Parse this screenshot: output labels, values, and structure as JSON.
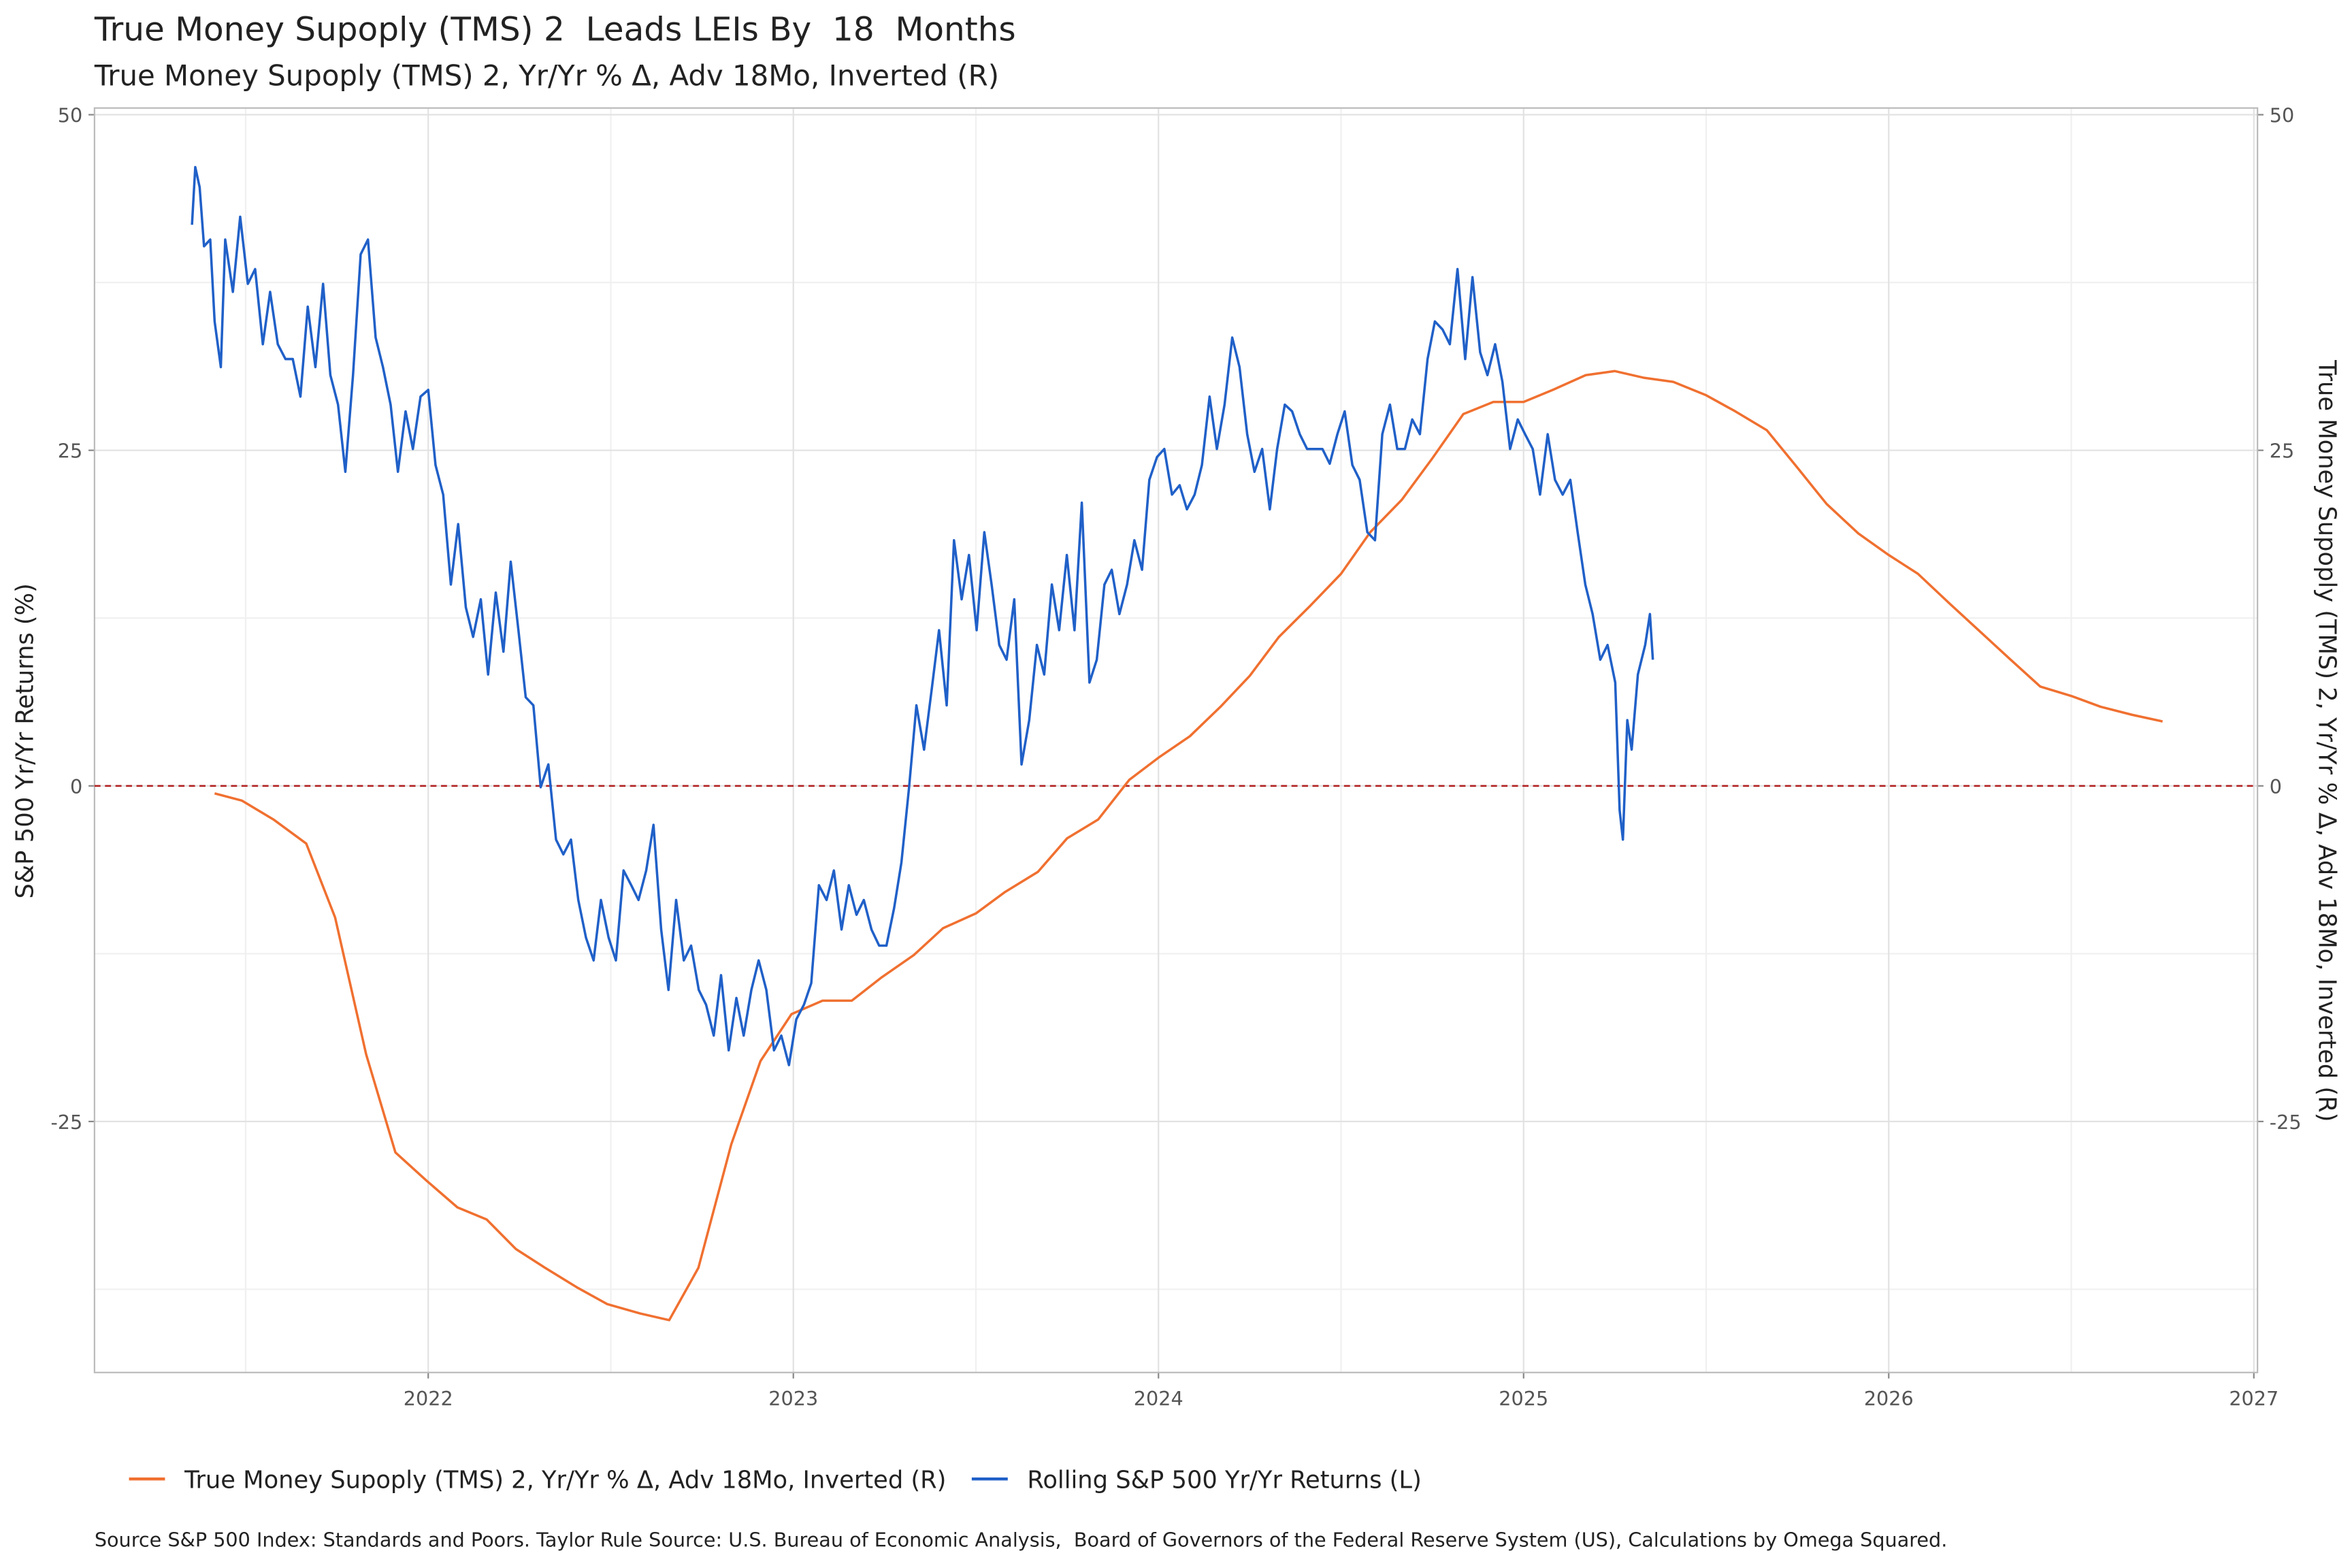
{
  "chart_data": {
    "type": "line",
    "title": "True Money Supoply (TMS) 2  Leads LEIs By  18  Months",
    "subtitle": "True Money Supoply (TMS) 2, Yr/Yr % Δ, Adv 18Mo, Inverted (R)",
    "y_label": "S&P 500 Yr/Yr Returns (%)",
    "y2_label": "True Money Supoply (TMS) 2, Yr/Yr % Δ, Adv 18Mo, Inverted (R)",
    "source": "Source S&P 500 Index: Standards and Poors. Taylor Rule Source: U.S. Bureau of Economic Analysis,  Board of Governors of the Federal Reserve System (US), Calculations by Omega Squared.",
    "xlim": [
      2021.086,
      2027.01
    ],
    "xticks": [
      2022,
      2023,
      2024,
      2025,
      2026,
      2027
    ],
    "ylim": [
      -43.7,
      50.5
    ],
    "yticks": [
      -25,
      0,
      25,
      50
    ],
    "y2lim": [
      -43.7,
      50.5
    ],
    "y2ticks": [
      -25,
      0,
      25,
      50
    ],
    "grid": true,
    "minor_grid": true,
    "reference_line": 0,
    "reference_color": "#b22222",
    "legend": "bottom",
    "series": [
      {
        "name": "True Money Supoply (TMS) 2, Yr/Yr % Δ, Adv 18Mo, Inverted (R)",
        "color": "#f07030",
        "axis": "y2",
        "x": [
          2021.415,
          2021.49,
          2021.576,
          2021.666,
          2021.745,
          2021.83,
          2021.91,
          2021.995,
          2022.08,
          2022.16,
          2022.24,
          2022.32,
          2022.41,
          2022.49,
          2022.58,
          2022.66,
          2022.74,
          2022.83,
          2022.91,
          2022.995,
          2023.08,
          2023.16,
          2023.24,
          2023.33,
          2023.41,
          2023.5,
          2023.58,
          2023.67,
          2023.75,
          2023.835,
          2023.92,
          2024.0,
          2024.086,
          2024.17,
          2024.25,
          2024.33,
          2024.415,
          2024.5,
          2024.58,
          2024.666,
          2024.75,
          2024.835,
          2024.917,
          2025.0,
          2025.08,
          2025.17,
          2025.25,
          2025.33,
          2025.41,
          2025.5,
          2025.58,
          2025.666,
          2025.75,
          2025.83,
          2025.917,
          2026.0,
          2026.08,
          2026.17,
          2026.25,
          2026.33,
          2026.415,
          2026.5,
          2026.58,
          2026.666,
          2026.75
        ],
        "values": [
          -0.56,
          -1.1,
          -2.5,
          -4.3,
          -9.8,
          -20.0,
          -27.3,
          -29.4,
          -31.4,
          -32.3,
          -34.5,
          -35.9,
          -37.4,
          -38.6,
          -39.3,
          -39.8,
          -35.9,
          -26.7,
          -20.5,
          -17.0,
          -16.0,
          -16.0,
          -14.3,
          -12.6,
          -10.6,
          -9.5,
          -7.9,
          -6.4,
          -3.9,
          -2.5,
          0.45,
          2.1,
          3.7,
          5.9,
          8.2,
          11.1,
          13.4,
          15.8,
          18.9,
          21.3,
          24.4,
          27.7,
          28.6,
          28.6,
          29.5,
          30.6,
          30.9,
          30.4,
          30.1,
          29.1,
          27.9,
          26.5,
          23.7,
          21.0,
          18.8,
          17.2,
          15.8,
          13.5,
          11.5,
          9.5,
          7.4,
          6.7,
          5.9,
          5.3,
          4.8
        ]
      },
      {
        "name": "Rolling S&P 500 Yr/Yr Returns (L)",
        "color": "#2060c8",
        "x": [
          2021.353,
          2021.362,
          2021.374,
          2021.386,
          2021.403,
          2021.415,
          2021.432,
          2021.444,
          2021.465,
          2021.485,
          2021.506,
          2021.526,
          2021.547,
          2021.567,
          2021.588,
          2021.609,
          2021.629,
          2021.65,
          2021.67,
          2021.691,
          2021.712,
          2021.732,
          2021.753,
          2021.773,
          2021.794,
          2021.815,
          2021.835,
          2021.856,
          2021.876,
          2021.897,
          2021.917,
          2021.938,
          2021.958,
          2021.979,
          2022.0,
          2022.02,
          2022.041,
          2022.062,
          2022.082,
          2022.103,
          2022.123,
          2022.144,
          2022.164,
          2022.185,
          2022.206,
          2022.226,
          2022.247,
          2022.267,
          2022.288,
          2022.308,
          2022.329,
          2022.35,
          2022.37,
          2022.391,
          2022.411,
          2022.432,
          2022.453,
          2022.473,
          2022.494,
          2022.514,
          2022.535,
          2022.556,
          2022.576,
          2022.597,
          2022.617,
          2022.638,
          2022.658,
          2022.679,
          2022.7,
          2022.72,
          2022.741,
          2022.761,
          2022.782,
          2022.802,
          2022.823,
          2022.844,
          2022.864,
          2022.885,
          2022.905,
          2022.926,
          2022.947,
          2022.967,
          2022.988,
          2023.008,
          2023.029,
          2023.049,
          2023.07,
          2023.091,
          2023.111,
          2023.132,
          2023.152,
          2023.173,
          2023.193,
          2023.214,
          2023.235,
          2023.255,
          2023.276,
          2023.296,
          2023.317,
          2023.337,
          2023.358,
          2023.379,
          2023.399,
          2023.42,
          2023.44,
          2023.461,
          2023.481,
          2023.502,
          2023.523,
          2023.543,
          2023.564,
          2023.584,
          2023.605,
          2023.625,
          2023.646,
          2023.667,
          2023.687,
          2023.708,
          2023.728,
          2023.749,
          2023.77,
          2023.79,
          2023.811,
          2023.831,
          2023.852,
          2023.872,
          2023.893,
          2023.914,
          2023.934,
          2023.955,
          2023.975,
          2023.996,
          2024.016,
          2024.037,
          2024.058,
          2024.078,
          2024.099,
          2024.119,
          2024.14,
          2024.16,
          2024.181,
          2024.202,
          2024.222,
          2024.243,
          2024.263,
          2024.284,
          2024.305,
          2024.325,
          2024.346,
          2024.366,
          2024.387,
          2024.407,
          2024.428,
          2024.449,
          2024.469,
          2024.49,
          2024.51,
          2024.531,
          2024.551,
          2024.572,
          2024.593,
          2024.613,
          2024.634,
          2024.654,
          2024.675,
          2024.695,
          2024.716,
          2024.737,
          2024.757,
          2024.778,
          2024.798,
          2024.819,
          2024.84,
          2024.86,
          2024.881,
          2024.901,
          2024.922,
          2024.942,
          2024.963,
          2024.984,
          2025.004,
          2025.025,
          2025.045,
          2025.066,
          2025.086,
          2025.107,
          2025.128,
          2025.148,
          2025.169,
          2025.189,
          2025.21,
          2025.23,
          2025.251,
          2025.263,
          2025.272,
          2025.284,
          2025.296,
          2025.313,
          2025.333,
          2025.346,
          2025.354
        ],
        "values": [
          41.8,
          46.1,
          44.6,
          40.2,
          40.7,
          34.6,
          31.2,
          40.7,
          36.8,
          42.4,
          37.4,
          38.5,
          32.9,
          36.8,
          32.9,
          31.8,
          31.8,
          29.0,
          35.7,
          31.2,
          37.4,
          30.6,
          28.4,
          23.4,
          30.6,
          39.6,
          40.7,
          33.4,
          31.2,
          28.4,
          23.4,
          27.9,
          25.1,
          29.0,
          29.5,
          23.9,
          21.7,
          15.0,
          19.5,
          13.3,
          11.1,
          13.9,
          8.3,
          14.4,
          10.0,
          16.7,
          11.6,
          6.6,
          6.0,
          -0.1,
          1.6,
          -4.0,
          -5.1,
          -4.0,
          -8.5,
          -11.3,
          -13.0,
          -8.5,
          -11.3,
          -13.0,
          -6.3,
          -7.4,
          -8.5,
          -6.3,
          -2.9,
          -10.7,
          -15.2,
          -8.5,
          -13.0,
          -11.9,
          -15.2,
          -16.3,
          -18.6,
          -14.1,
          -19.7,
          -15.8,
          -18.6,
          -15.2,
          -13.0,
          -15.2,
          -19.7,
          -18.6,
          -20.8,
          -17.4,
          -16.3,
          -14.7,
          -7.4,
          -8.5,
          -6.3,
          -10.7,
          -7.4,
          -9.6,
          -8.5,
          -10.7,
          -11.9,
          -11.9,
          -9.1,
          -5.7,
          -0.1,
          6.0,
          2.7,
          7.2,
          11.6,
          6.0,
          18.3,
          13.9,
          17.2,
          11.6,
          18.9,
          15.0,
          10.5,
          9.4,
          13.9,
          1.6,
          4.9,
          10.5,
          8.3,
          15.0,
          11.6,
          17.2,
          11.6,
          21.1,
          7.7,
          9.4,
          15.0,
          16.1,
          12.8,
          15.0,
          18.3,
          16.1,
          22.8,
          24.5,
          25.1,
          21.7,
          22.4,
          20.6,
          21.7,
          23.9,
          29.0,
          25.1,
          28.4,
          33.4,
          31.2,
          26.2,
          23.4,
          25.1,
          20.6,
          25.1,
          28.4,
          27.9,
          26.2,
          25.1,
          25.1,
          25.1,
          24.0,
          26.2,
          27.9,
          23.9,
          22.8,
          18.9,
          18.3,
          26.2,
          28.4,
          25.1,
          25.1,
          27.3,
          26.2,
          31.8,
          34.6,
          34.0,
          32.9,
          38.5,
          31.8,
          37.9,
          32.3,
          30.6,
          32.9,
          30.1,
          25.1,
          27.3,
          26.2,
          25.1,
          21.7,
          26.2,
          22.8,
          21.7,
          22.8,
          18.9,
          15.0,
          12.8,
          9.4,
          10.5,
          7.7,
          -1.8,
          -4.0,
          4.9,
          2.7,
          8.3,
          10.5,
          12.8,
          9.4
        ]
      }
    ]
  }
}
